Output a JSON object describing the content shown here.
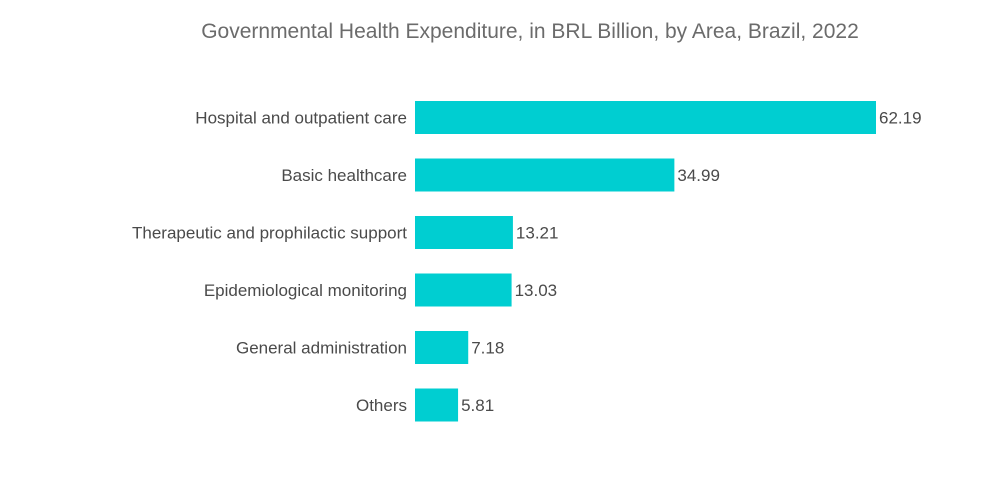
{
  "chart_data": {
    "type": "bar",
    "orientation": "horizontal",
    "title": "Governmental Health Expenditure, in BRL Billion, by Area, Brazil, 2022",
    "xlabel": "",
    "ylabel": "",
    "categories": [
      "Hospital and outpatient care",
      "Basic healthcare",
      "Therapeutic and prophilactic support",
      "Epidemiological monitoring",
      "General administration",
      "Others"
    ],
    "values": [
      62.19,
      34.99,
      13.21,
      13.03,
      7.18,
      5.81
    ],
    "value_labels": [
      "62.19",
      "34.99",
      "13.21",
      "13.03",
      "7.18",
      "5.81"
    ],
    "xlim": [
      0,
      62.19
    ],
    "grid": false,
    "legend": "none",
    "bar_color": "#00CED1"
  }
}
